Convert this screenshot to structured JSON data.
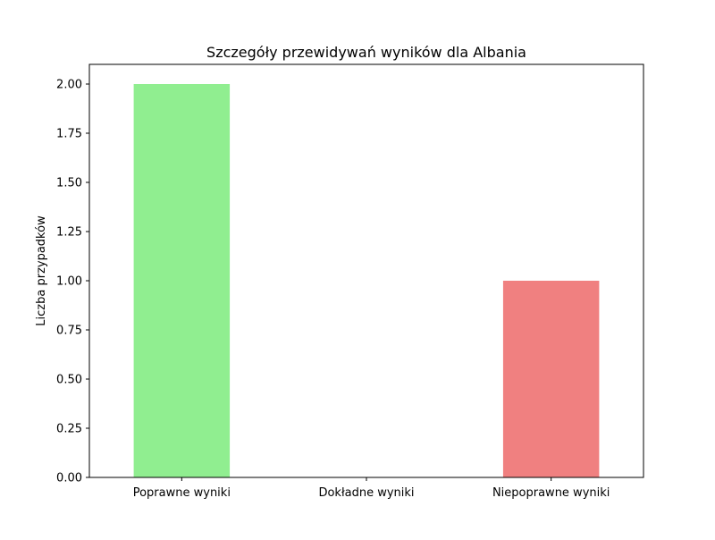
{
  "chart_data": {
    "type": "bar",
    "title": "Szczegóły przewidywań wyników dla Albania",
    "xlabel": "",
    "ylabel": "Liczba przypadków",
    "categories": [
      "Poprawne wyniki",
      "Dokładne wyniki",
      "Niepoprawne wyniki"
    ],
    "values": [
      2,
      0,
      1
    ],
    "colors": [
      "#90ee90",
      "#87ceeb",
      "#f08080"
    ],
    "ylim": [
      0,
      2.1
    ],
    "yticks": [
      0,
      0.25,
      0.5,
      0.75,
      1.0,
      1.25,
      1.5,
      1.75,
      2.0
    ],
    "ytick_labels": [
      "0.00",
      "0.25",
      "0.50",
      "0.75",
      "1.00",
      "1.25",
      "1.50",
      "1.75",
      "2.00"
    ],
    "grid": false,
    "legend": "none"
  }
}
